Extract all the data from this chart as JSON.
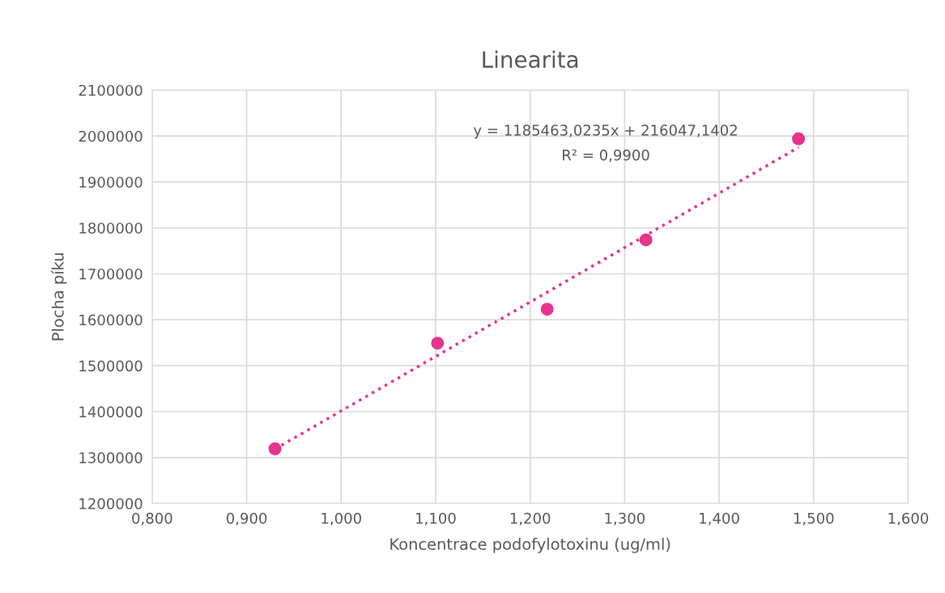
{
  "chart_data": {
    "type": "scatter",
    "title": "Linearita",
    "xlabel": "Koncentrace podofylotoxinu (ug/ml)",
    "ylabel": "Plocha píku",
    "series": [
      {
        "color": "#e8338f",
        "marker": "circle",
        "x": [
          0.93,
          1.102,
          1.218,
          1.3225,
          1.484
        ],
        "values": [
          1319000,
          1549000,
          1623000,
          1774000,
          1994000
        ]
      },
      {
        "type": "line",
        "color": "#e8338f",
        "line_style": "dotted",
        "marker": "none",
        "x": [
          0.93,
          1.484
        ],
        "values": [
          1318500,
          1975300
        ]
      }
    ],
    "annotations": [
      "y = 1185463,0235x + 216047,1402",
      "R² = 0,9900"
    ],
    "xlim": [
      0.8,
      1.6
    ],
    "xticks": [
      {
        "value": 0.8,
        "label": "0,800"
      },
      {
        "value": 0.9,
        "label": "0,900"
      },
      {
        "value": 1.0,
        "label": "1,000"
      },
      {
        "value": 1.1,
        "label": "1,100"
      },
      {
        "value": 1.2,
        "label": "1,200"
      },
      {
        "value": 1.3,
        "label": "1,300"
      },
      {
        "value": 1.4,
        "label": "1,400"
      },
      {
        "value": 1.5,
        "label": "1,500"
      },
      {
        "value": 1.6,
        "label": "1,600"
      }
    ],
    "ylim": [
      1200000,
      2100000
    ],
    "yticks": [
      1200000,
      1300000,
      1400000,
      1500000,
      1600000,
      1700000,
      1800000,
      1900000,
      2000000,
      2100000
    ],
    "grid": true
  }
}
